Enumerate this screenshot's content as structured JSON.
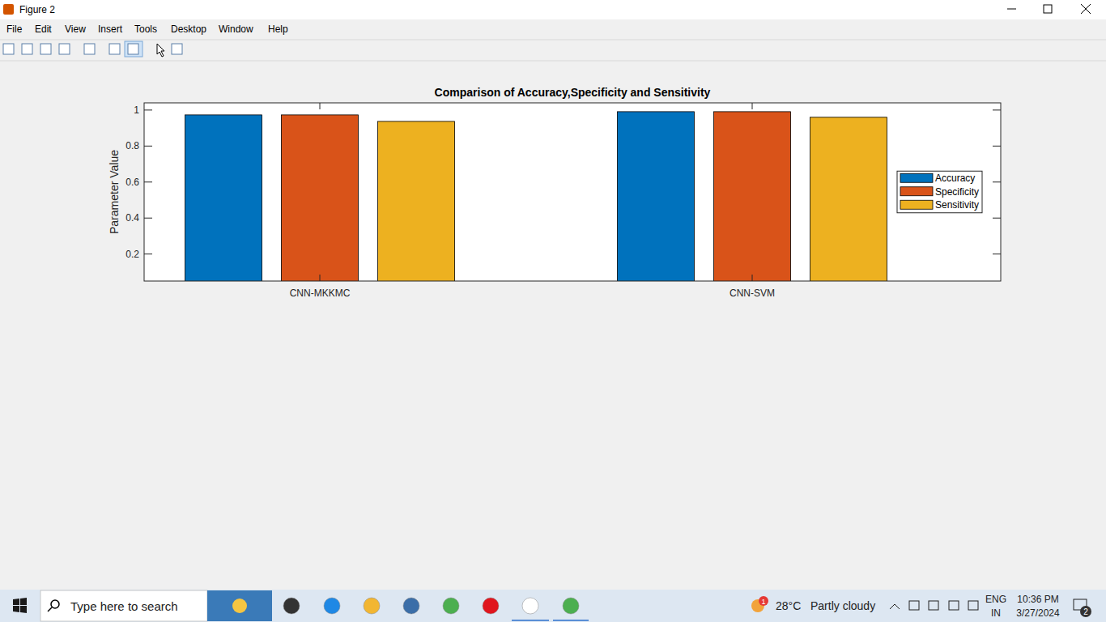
{
  "window": {
    "title": "Figure 2",
    "menu": [
      "File",
      "Edit",
      "View",
      "Insert",
      "Tools",
      "Desktop",
      "Window",
      "Help"
    ]
  },
  "chart_data": {
    "type": "bar",
    "title": "Comparison of Accuracy,Specificity and Sensitivity",
    "y_label": "Parameter Value",
    "categories": [
      "CNN-MKKMC",
      "CNN-SVM"
    ],
    "series": [
      {
        "name": "Accuracy",
        "color": "#0072bd",
        "values": [
          0.973,
          0.991
        ]
      },
      {
        "name": "Specificity",
        "color": "#d95319",
        "values": [
          0.973,
          0.991
        ]
      },
      {
        "name": "Sensitivity",
        "color": "#edb120",
        "values": [
          0.937,
          0.96
        ]
      }
    ],
    "ylim": [
      0.05,
      1.04
    ],
    "yticks": [
      0.2,
      0.4,
      0.6,
      0.8,
      1
    ],
    "legend": "east",
    "grid": false
  },
  "taskbar": {
    "search": "Type here to search",
    "weather": {
      "temperature": "28°C",
      "condition": "Partly cloudy",
      "badge": 1
    },
    "language": [
      "ENG",
      "IN"
    ],
    "time": "10:36 PM",
    "date": "3/27/2024",
    "notifications": 2
  }
}
